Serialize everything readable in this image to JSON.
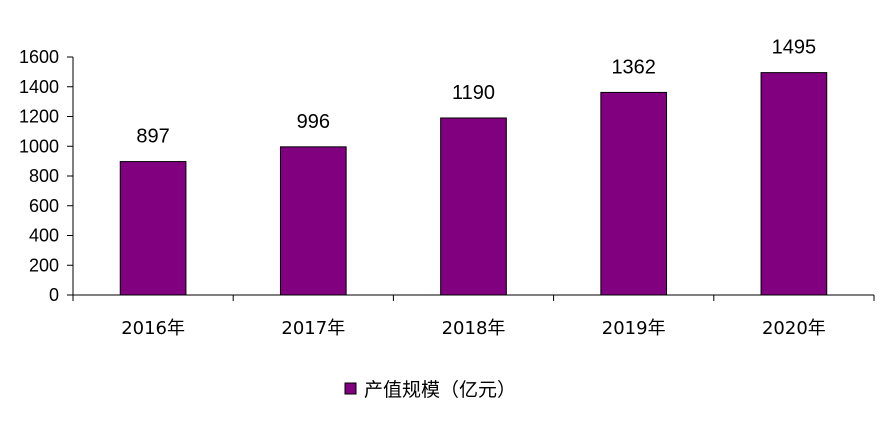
{
  "chart_data": {
    "type": "bar",
    "categories": [
      "2016年",
      "2017年",
      "2018年",
      "2019年",
      "2020年"
    ],
    "series": [
      {
        "name": "产值规模（亿元）",
        "values": [
          897,
          996,
          1190,
          1362,
          1495
        ]
      }
    ],
    "ylim": [
      0,
      1600
    ],
    "yticks": [
      0,
      200,
      400,
      600,
      800,
      1000,
      1200,
      1400,
      1600
    ],
    "grid": false,
    "legend_position": "bottom-center",
    "colors": {
      "bar": "#800080",
      "axis": "#000000"
    }
  }
}
